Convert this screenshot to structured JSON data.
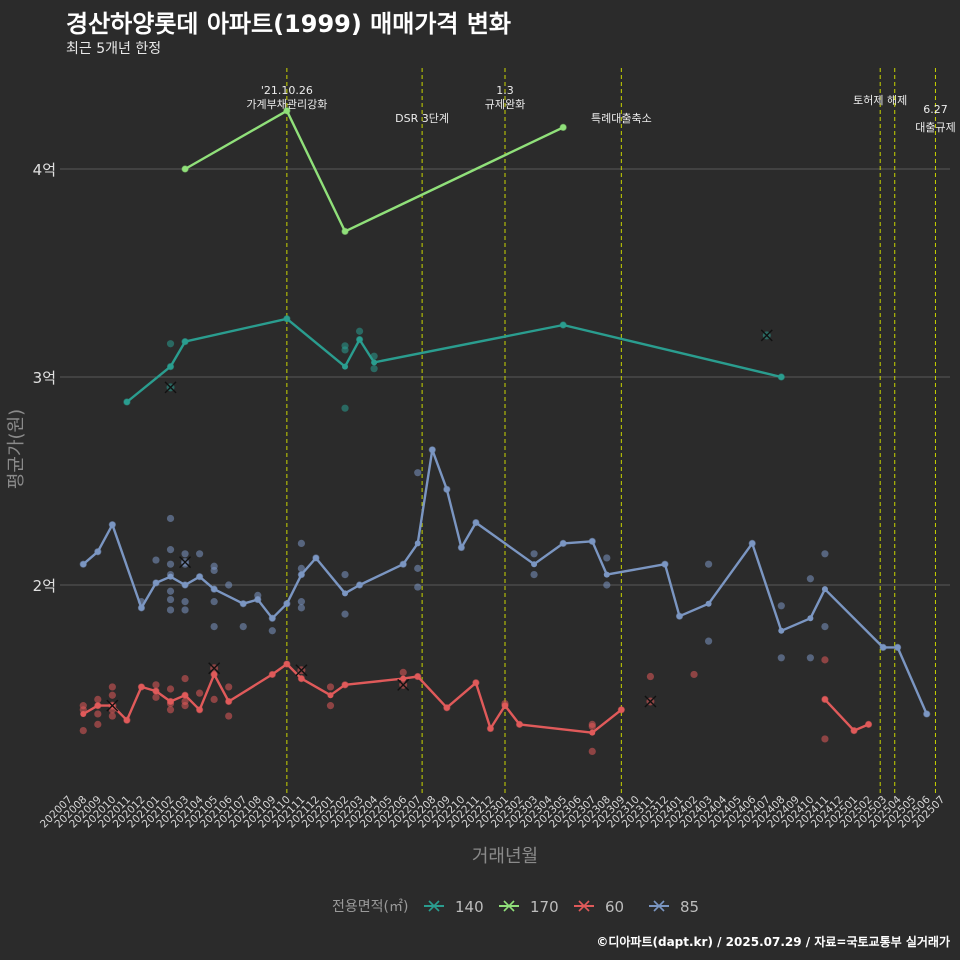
{
  "title": "경산하양롯데 아파트(1999) 매매가격 변화",
  "subtitle": "최근 5개년 한정",
  "credit": "©디아파트(dapt.kr) / 2025.07.29 / 자료=국토교통부 실거래가",
  "colors": {
    "background": "#2b2b2b",
    "grid": "#5a5a5a",
    "vline": "#c8d400",
    "s140": "#2a9d8f",
    "s170": "#90e07a",
    "s60": "#e05a5a",
    "s85": "#7b96c2"
  },
  "chart_data": {
    "type": "line",
    "xlabel": "거래년월",
    "ylabel": "평균가(원)",
    "legend_title": "전용면적(㎡)",
    "legend_position": "bottom",
    "ylim": [
      1.0,
      4.5
    ],
    "yticks": [
      {
        "value": 2,
        "label": "2억"
      },
      {
        "value": 3,
        "label": "3억"
      },
      {
        "value": 4,
        "label": "4억"
      }
    ],
    "x_categories": [
      "202007",
      "202008",
      "202009",
      "202010",
      "202011",
      "202012",
      "202101",
      "202102",
      "202103",
      "202104",
      "202105",
      "202106",
      "202107",
      "202108",
      "202109",
      "202110",
      "202111",
      "202112",
      "202201",
      "202202",
      "202203",
      "202204",
      "202205",
      "202206",
      "202207",
      "202208",
      "202209",
      "202210",
      "202211",
      "202212",
      "202301",
      "202302",
      "202303",
      "202304",
      "202305",
      "202306",
      "202307",
      "202308",
      "202309",
      "202310",
      "202311",
      "202312",
      "202401",
      "202402",
      "202403",
      "202404",
      "202405",
      "202406",
      "202407",
      "202408",
      "202409",
      "202410",
      "202411",
      "202412",
      "202501",
      "202502",
      "202503",
      "202504",
      "202505",
      "202506",
      "202507"
    ],
    "events": [
      {
        "x": 15,
        "lines": [
          "'21.10.26",
          "가계부채관리강화"
        ]
      },
      {
        "x": 24.3,
        "lines": [
          "DSR 3단계"
        ]
      },
      {
        "x": 30,
        "lines": [
          "1.3",
          "규제완화"
        ]
      },
      {
        "x": 38,
        "lines": [
          "특례대출축소"
        ]
      },
      {
        "x": 55.8,
        "lines": [
          "토허제 해제"
        ]
      },
      {
        "x": 56.8,
        "lines": []
      },
      {
        "x": 59.6,
        "lines": [
          "6.27",
          "대출규제"
        ]
      }
    ],
    "series": [
      {
        "name": "140",
        "color_key": "s140",
        "line": [
          [
            4,
            2.88
          ],
          [
            7,
            3.05
          ],
          [
            8,
            3.17
          ],
          [
            15,
            3.28
          ],
          [
            19,
            3.05
          ],
          [
            20,
            3.18
          ],
          [
            21,
            3.07
          ],
          [
            34,
            3.25
          ],
          [
            49,
            3.0
          ]
        ],
        "points": [
          [
            4,
            2.88
          ],
          [
            7,
            3.05
          ],
          [
            7,
            3.16
          ],
          [
            8,
            3.17
          ],
          [
            15,
            3.28
          ],
          [
            19,
            3.13
          ],
          [
            19,
            3.15
          ],
          [
            19,
            2.85
          ],
          [
            20,
            3.22
          ],
          [
            20,
            3.18
          ],
          [
            21,
            3.04
          ],
          [
            21,
            3.1
          ],
          [
            34,
            3.25
          ],
          [
            49,
            3.0
          ]
        ],
        "cancelled": [
          [
            7,
            2.95
          ],
          [
            48,
            3.2
          ]
        ]
      },
      {
        "name": "170",
        "color_key": "s170",
        "line": [
          [
            8,
            4.0
          ],
          [
            15,
            4.28
          ],
          [
            19,
            3.7
          ],
          [
            34,
            4.2
          ]
        ],
        "points": [
          [
            8,
            4.0
          ],
          [
            15,
            4.28
          ],
          [
            19,
            3.7
          ],
          [
            34,
            4.2
          ]
        ],
        "cancelled": []
      },
      {
        "name": "60",
        "color_key": "s60",
        "line": [
          [
            1,
            1.38
          ],
          [
            2,
            1.42
          ],
          [
            3,
            1.42
          ],
          [
            4,
            1.35
          ],
          [
            5,
            1.51
          ],
          [
            6,
            1.49
          ],
          [
            7,
            1.44
          ],
          [
            8,
            1.47
          ],
          [
            9,
            1.4
          ],
          [
            10,
            1.57
          ],
          [
            11,
            1.44
          ],
          [
            14,
            1.57
          ],
          [
            15,
            1.62
          ],
          [
            16,
            1.55
          ],
          [
            18,
            1.47
          ],
          [
            19,
            1.52
          ],
          [
            23,
            1.55
          ],
          [
            24,
            1.56
          ],
          [
            26,
            1.41
          ],
          [
            28,
            1.53
          ],
          [
            29,
            1.31
          ],
          [
            30,
            1.42
          ],
          [
            31,
            1.33
          ],
          [
            36,
            1.29
          ],
          [
            38,
            1.4
          ]
        ],
        "points": [
          [
            1,
            1.3
          ],
          [
            1,
            1.42
          ],
          [
            1,
            1.4
          ],
          [
            2,
            1.33
          ],
          [
            2,
            1.38
          ],
          [
            2,
            1.45
          ],
          [
            2,
            1.42
          ],
          [
            3,
            1.37
          ],
          [
            3,
            1.4
          ],
          [
            3,
            1.47
          ],
          [
            3,
            1.51
          ],
          [
            4,
            1.35
          ],
          [
            5,
            1.51
          ],
          [
            6,
            1.49
          ],
          [
            6,
            1.46
          ],
          [
            6,
            1.52
          ],
          [
            7,
            1.4
          ],
          [
            7,
            1.5
          ],
          [
            7,
            1.44
          ],
          [
            7,
            1.43
          ],
          [
            8,
            1.44
          ],
          [
            8,
            1.47
          ],
          [
            8,
            1.55
          ],
          [
            8,
            1.42
          ],
          [
            9,
            1.4
          ],
          [
            9,
            1.48
          ],
          [
            10,
            1.57
          ],
          [
            10,
            1.45
          ],
          [
            11,
            1.44
          ],
          [
            11,
            1.37
          ],
          [
            11,
            1.51
          ],
          [
            14,
            1.57
          ],
          [
            15,
            1.62
          ],
          [
            16,
            1.55
          ],
          [
            18,
            1.42
          ],
          [
            18,
            1.51
          ],
          [
            19,
            1.52
          ],
          [
            23,
            1.58
          ],
          [
            24,
            1.56
          ],
          [
            26,
            1.41
          ],
          [
            28,
            1.53
          ],
          [
            29,
            1.31
          ],
          [
            30,
            1.42
          ],
          [
            30,
            1.43
          ],
          [
            31,
            1.33
          ],
          [
            36,
            1.32
          ],
          [
            36,
            1.2
          ],
          [
            36,
            1.33
          ],
          [
            38,
            1.4
          ],
          [
            40,
            1.56
          ],
          [
            43,
            1.57
          ],
          [
            52,
            1.64
          ],
          [
            52,
            1.26
          ]
        ],
        "cancelled": [
          [
            3,
            1.42
          ],
          [
            10,
            1.6
          ],
          [
            16,
            1.59
          ],
          [
            23,
            1.52
          ],
          [
            40,
            1.44
          ]
        ]
      },
      {
        "name": "60",
        "color_key": "s60",
        "hide_legend": true,
        "line": [
          [
            52,
            1.45
          ],
          [
            54,
            1.3
          ],
          [
            55,
            1.33
          ]
        ],
        "points": [
          [
            52,
            1.45
          ],
          [
            54,
            1.3
          ],
          [
            55,
            1.33
          ]
        ],
        "cancelled": []
      },
      {
        "name": "85",
        "color_key": "s85",
        "line": [
          [
            1,
            2.1
          ],
          [
            2,
            2.16
          ],
          [
            3,
            2.29
          ],
          [
            5,
            1.89
          ],
          [
            6,
            2.01
          ],
          [
            7,
            2.04
          ],
          [
            8,
            2.0
          ],
          [
            9,
            2.04
          ],
          [
            10,
            1.98
          ],
          [
            12,
            1.91
          ],
          [
            13,
            1.93
          ],
          [
            14,
            1.84
          ],
          [
            15,
            1.91
          ],
          [
            16,
            2.05
          ],
          [
            17,
            2.13
          ],
          [
            19,
            1.96
          ],
          [
            20,
            2.0
          ],
          [
            23,
            2.1
          ],
          [
            24,
            2.2
          ],
          [
            25,
            2.65
          ],
          [
            26,
            2.46
          ],
          [
            27,
            2.18
          ],
          [
            28,
            2.3
          ],
          [
            32,
            2.1
          ],
          [
            34,
            2.2
          ],
          [
            36,
            2.21
          ],
          [
            37,
            2.05
          ],
          [
            41,
            2.1
          ],
          [
            42,
            1.85
          ],
          [
            44,
            1.91
          ],
          [
            47,
            2.2
          ],
          [
            49,
            1.78
          ],
          [
            51,
            1.84
          ],
          [
            52,
            1.98
          ],
          [
            56,
            1.7
          ],
          [
            57,
            1.7
          ],
          [
            59,
            1.38
          ]
        ],
        "points": [
          [
            1,
            2.1
          ],
          [
            2,
            2.16
          ],
          [
            3,
            2.29
          ],
          [
            5,
            1.89
          ],
          [
            5,
            1.92
          ],
          [
            6,
            2.01
          ],
          [
            6,
            2.12
          ],
          [
            7,
            2.32
          ],
          [
            7,
            2.17
          ],
          [
            7,
            2.1
          ],
          [
            7,
            2.05
          ],
          [
            7,
            1.97
          ],
          [
            7,
            1.93
          ],
          [
            7,
            1.88
          ],
          [
            8,
            2.0
          ],
          [
            8,
            2.15
          ],
          [
            8,
            2.1
          ],
          [
            8,
            1.92
          ],
          [
            8,
            1.88
          ],
          [
            9,
            2.15
          ],
          [
            9,
            2.04
          ],
          [
            10,
            1.98
          ],
          [
            10,
            2.09
          ],
          [
            10,
            2.07
          ],
          [
            10,
            1.92
          ],
          [
            10,
            1.8
          ],
          [
            11,
            2.0
          ],
          [
            12,
            1.91
          ],
          [
            12,
            1.8
          ],
          [
            13,
            1.93
          ],
          [
            13,
            1.95
          ],
          [
            14,
            1.84
          ],
          [
            14,
            1.78
          ],
          [
            15,
            1.91
          ],
          [
            16,
            2.08
          ],
          [
            16,
            2.05
          ],
          [
            16,
            2.2
          ],
          [
            16,
            1.92
          ],
          [
            16,
            1.89
          ],
          [
            17,
            2.13
          ],
          [
            19,
            2.05
          ],
          [
            19,
            1.86
          ],
          [
            20,
            2.0
          ],
          [
            23,
            2.1
          ],
          [
            24,
            2.54
          ],
          [
            24,
            2.08
          ],
          [
            24,
            1.99
          ],
          [
            25,
            2.65
          ],
          [
            26,
            2.46
          ],
          [
            27,
            2.18
          ],
          [
            28,
            2.3
          ],
          [
            32,
            2.15
          ],
          [
            32,
            2.05
          ],
          [
            34,
            2.2
          ],
          [
            36,
            2.21
          ],
          [
            37,
            2.13
          ],
          [
            37,
            2.0
          ],
          [
            41,
            2.1
          ],
          [
            42,
            1.85
          ],
          [
            44,
            2.1
          ],
          [
            44,
            1.73
          ],
          [
            47,
            2.2
          ],
          [
            49,
            1.9
          ],
          [
            49,
            1.65
          ],
          [
            51,
            1.65
          ],
          [
            51,
            2.03
          ],
          [
            52,
            1.8
          ],
          [
            52,
            2.15
          ],
          [
            56,
            1.7
          ],
          [
            57,
            1.7
          ],
          [
            59,
            1.38
          ]
        ],
        "cancelled": [
          [
            8,
            2.11
          ]
        ]
      }
    ]
  }
}
